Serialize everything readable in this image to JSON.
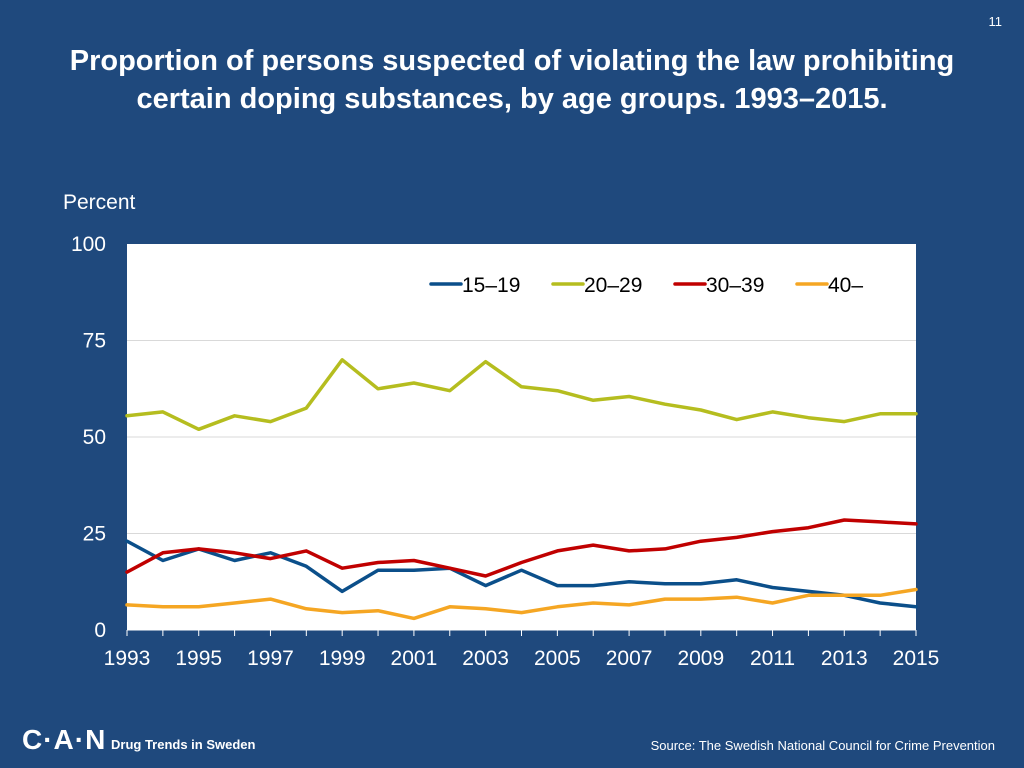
{
  "slide": {
    "page_number": "11",
    "title": "Proportion of persons suspected of violating the law prohibiting certain doping substances, by age groups. 1993–2015.",
    "footer": {
      "logo": "C·A·N",
      "tagline": "Drug Trends in Sweden",
      "source": "Source: The Swedish National Council for Crime Prevention"
    }
  },
  "colors": {
    "background": "#1f497d",
    "plot_bg": "#ffffff",
    "grid": "#d9d9d9"
  },
  "chart_data": {
    "type": "line",
    "title": "Proportion of persons suspected of violating the law prohibiting certain doping substances, by age groups. 1993–2015.",
    "xlabel": "",
    "ylabel": "Percent",
    "ylim": [
      0,
      100
    ],
    "yticks": [
      0,
      25,
      50,
      75,
      100
    ],
    "x": [
      1993,
      1994,
      1995,
      1996,
      1997,
      1998,
      1999,
      2000,
      2001,
      2002,
      2003,
      2004,
      2005,
      2006,
      2007,
      2008,
      2009,
      2010,
      2011,
      2012,
      2013,
      2014,
      2015
    ],
    "xtick_labels": [
      "1993",
      "1995",
      "1997",
      "1999",
      "2001",
      "2003",
      "2005",
      "2007",
      "2009",
      "2011",
      "2013",
      "2015"
    ],
    "legend_position": "top-right",
    "series": [
      {
        "name": "15–19",
        "color": "#0b4f8a",
        "values": [
          23,
          18,
          21,
          18,
          20,
          16.5,
          10,
          15.5,
          15.5,
          16,
          11.5,
          15.5,
          11.5,
          11.5,
          12.5,
          12,
          12,
          13,
          11,
          10,
          9,
          7,
          6
        ]
      },
      {
        "name": "20–29",
        "color": "#b5bd1f",
        "values": [
          55.5,
          56.5,
          52,
          55.5,
          54,
          57.5,
          70,
          62.5,
          64,
          62,
          69.5,
          63,
          62,
          59.5,
          60.5,
          58.5,
          57,
          54.5,
          56.5,
          55,
          54,
          56,
          56
        ]
      },
      {
        "name": "30–39",
        "color": "#c00000",
        "values": [
          15,
          20,
          21,
          20,
          18.5,
          20.5,
          16,
          17.5,
          18,
          16,
          14,
          17.5,
          20.5,
          22,
          20.5,
          21,
          23,
          24,
          25.5,
          26.5,
          28.5,
          28,
          27.5
        ]
      },
      {
        "name": "40–",
        "color": "#f5a623",
        "values": [
          6.5,
          6,
          6,
          7,
          8,
          5.5,
          4.5,
          5,
          3,
          6,
          5.5,
          4.5,
          6,
          7,
          6.5,
          8,
          8,
          8.5,
          7,
          9,
          9,
          9,
          10.5
        ]
      }
    ]
  }
}
